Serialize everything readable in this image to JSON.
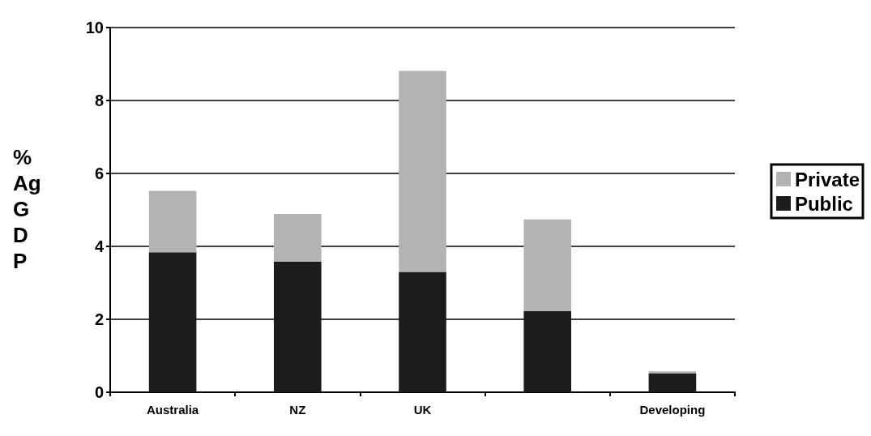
{
  "chart_data": {
    "type": "bar",
    "stacked": true,
    "ylabel": "%\nAg\nG\nD\nP",
    "categories": [
      "Australia",
      "NZ",
      "UK",
      null,
      "Developing"
    ],
    "series": [
      {
        "name": "Public",
        "color": "#1c1c1c",
        "values": [
          3.84,
          3.58,
          3.3,
          2.22,
          0.52
        ]
      },
      {
        "name": "Private",
        "color": "#b3b3b3",
        "values": [
          1.68,
          1.31,
          5.51,
          2.52,
          0.05
        ]
      }
    ],
    "ylim": [
      0,
      10
    ],
    "yticks": [
      0,
      2,
      4,
      6,
      8,
      10
    ],
    "grid": "y",
    "legend": "right"
  }
}
